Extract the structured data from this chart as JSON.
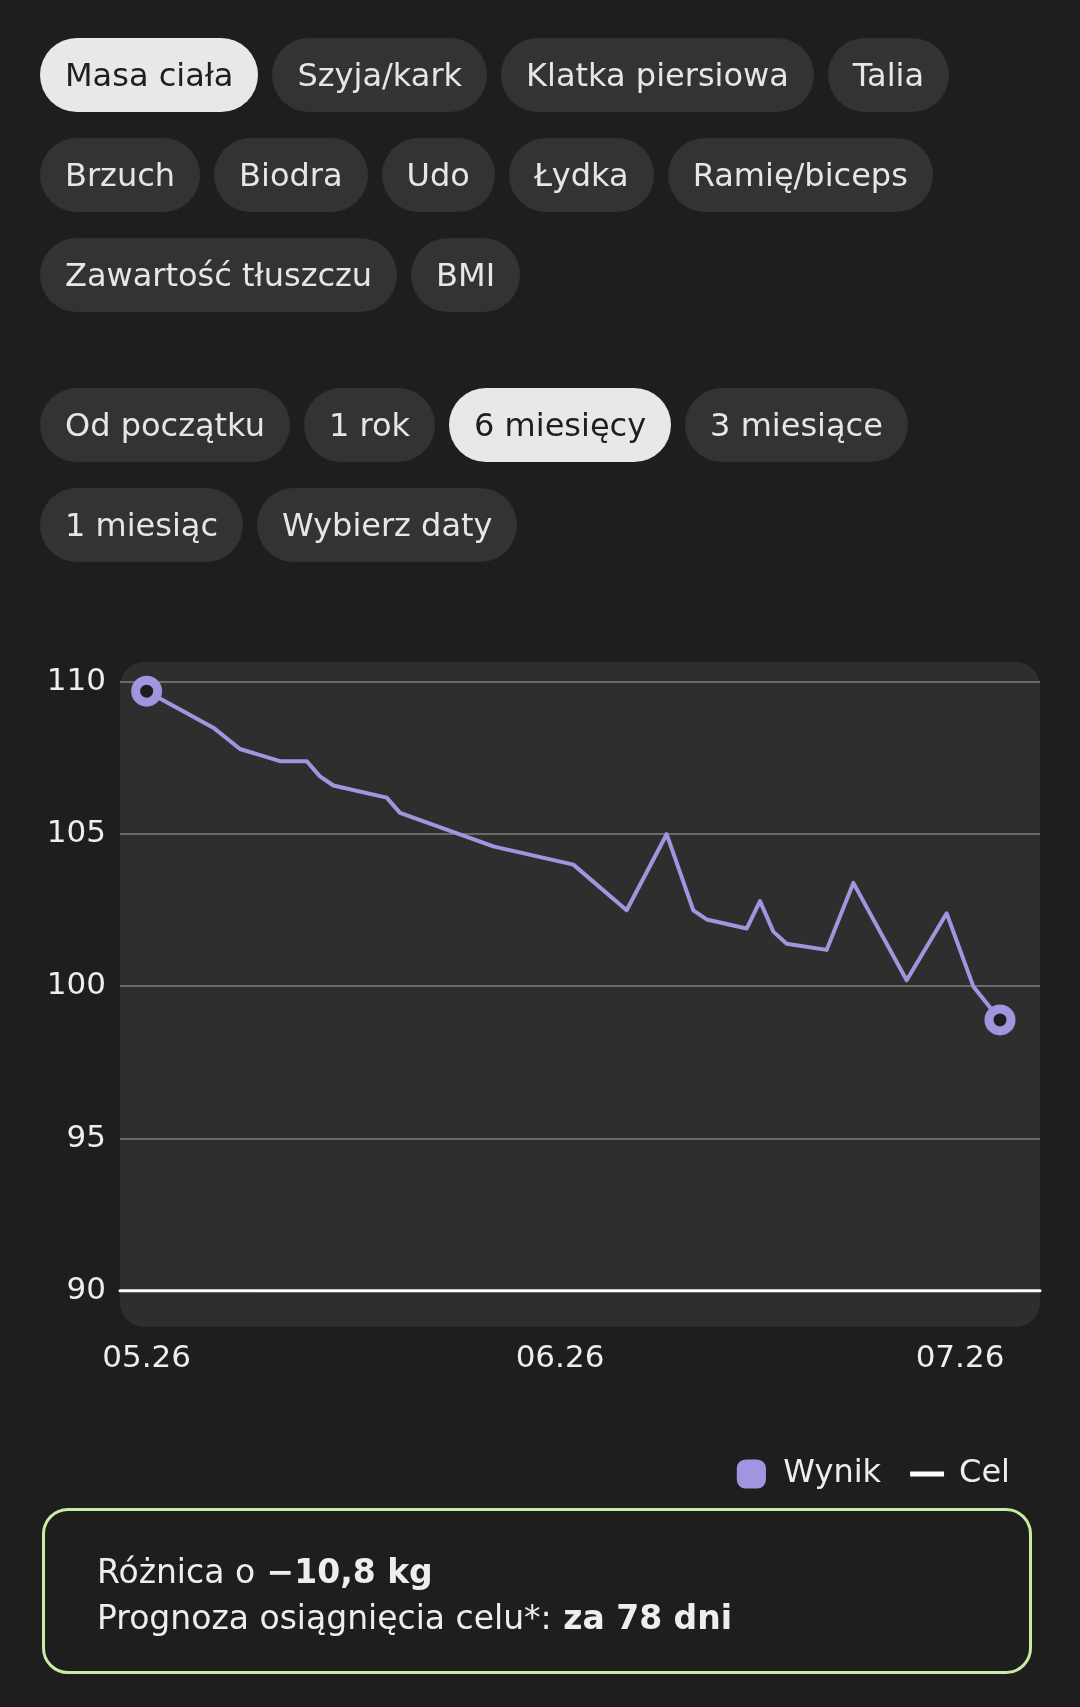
{
  "chart_data": {
    "type": "line",
    "x": [
      "--05-26",
      "--05-31",
      "--06-02",
      "--06-05",
      "--06-07",
      "--06-08",
      "--06-09",
      "--06-13",
      "--06-14",
      "--06-21",
      "--06-27",
      "--07-01",
      "--07-04",
      "--07-06",
      "--07-07",
      "--07-10",
      "--07-11",
      "--07-12",
      "--07-13",
      "--07-16",
      "--07-18",
      "--07-22",
      "--07-25",
      "--07-27",
      "--07-29"
    ],
    "series": [
      {
        "name": "Wynik",
        "color": "#a394e0",
        "values": [
          109.7,
          108.5,
          107.8,
          107.4,
          107.4,
          106.9,
          106.6,
          106.2,
          105.7,
          104.6,
          104.0,
          102.5,
          105.0,
          102.5,
          102.2,
          101.9,
          102.8,
          101.8,
          101.4,
          101.2,
          103.4,
          100.2,
          102.4,
          100.0,
          98.9
        ]
      },
      {
        "name": "Cel",
        "color": "#ffffff",
        "x": [
          "--05-24",
          "--08-01"
        ],
        "values": [
          90,
          90
        ]
      }
    ],
    "xlim": [
      "--05-24",
      "--08-01"
    ],
    "xticks": [
      {
        "value": "--05-26",
        "label": "05.26"
      },
      {
        "value": "--06-26",
        "label": "06.26"
      },
      {
        "value": "--07-26",
        "label": "07.26"
      }
    ],
    "ylim": [
      90,
      110
    ],
    "yticks": [
      90,
      95,
      100,
      105,
      110
    ],
    "grid": "y",
    "legend": "bottom right",
    "line_style": "solid",
    "annotations": [
      "Masa ciała",
      "Szyja/kark",
      "Klatka piersiowa",
      "Talia",
      "Brzuch",
      "Biodra",
      "Udo",
      "Łydka",
      "Ramię/biceps",
      "Zawartość tłuszczu",
      "BMI",
      "Od początku",
      "1 rok",
      "6 miesięcy",
      "3 miesiące",
      "1 miesiąc",
      "Wybierz daty",
      "Różnica o",
      "−10,8 kg",
      "Prognoza osiągnięcia celu*:",
      "za 78 dni"
    ]
  }
}
